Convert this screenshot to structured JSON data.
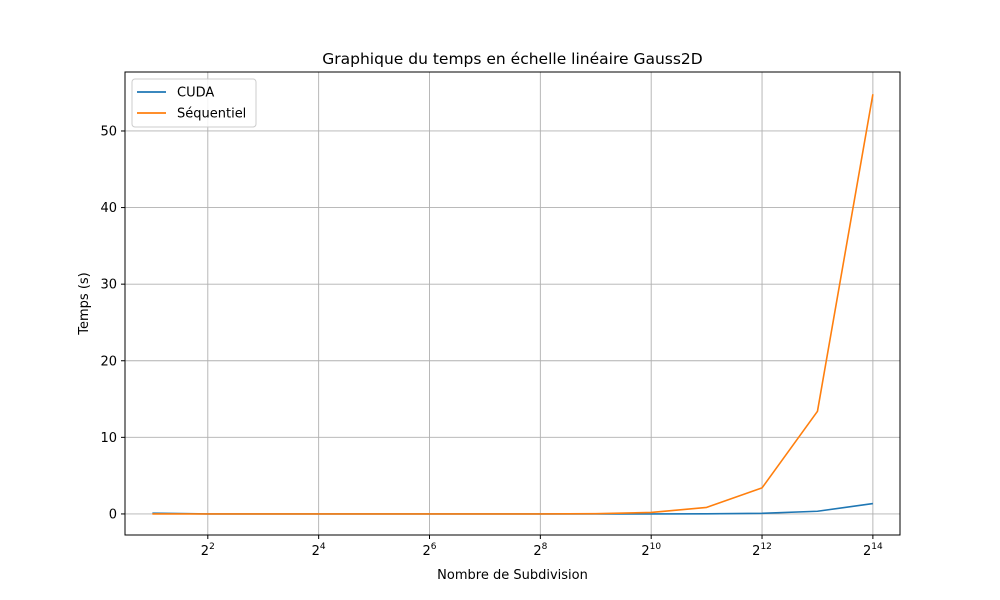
{
  "chart_data": {
    "type": "line",
    "title": "Graphique du temps en échelle linéaire Gauss2D",
    "xlabel": "Nombre de Subdivision",
    "ylabel": "Temps (s)",
    "x_scale": "log2",
    "x_ticks": [
      {
        "base": "2",
        "exp": "2",
        "value": 4
      },
      {
        "base": "2",
        "exp": "4",
        "value": 16
      },
      {
        "base": "2",
        "exp": "6",
        "value": 64
      },
      {
        "base": "2",
        "exp": "8",
        "value": 256
      },
      {
        "base": "2",
        "exp": "10",
        "value": 1024
      },
      {
        "base": "2",
        "exp": "12",
        "value": 4096
      },
      {
        "base": "2",
        "exp": "14",
        "value": 16384
      }
    ],
    "y_ticks": [
      {
        "label": "0",
        "value": 0
      },
      {
        "label": "10",
        "value": 10
      },
      {
        "label": "20",
        "value": 20
      },
      {
        "label": "30",
        "value": 30
      },
      {
        "label": "40",
        "value": 40
      },
      {
        "label": "50",
        "value": 50
      }
    ],
    "xlim": [
      1.42,
      23000
    ],
    "ylim": [
      -2.75,
      57.7
    ],
    "grid": true,
    "legend_position": "top-left",
    "x": [
      2,
      4,
      8,
      16,
      32,
      64,
      128,
      256,
      512,
      1024,
      2048,
      4096,
      8192,
      16384
    ],
    "series": [
      {
        "name": "CUDA",
        "color": "#1f77b4",
        "values": [
          0.1,
          0.0,
          0.0,
          0.0,
          0.0,
          0.0,
          0.0,
          0.0,
          0.0,
          0.0,
          0.02,
          0.08,
          0.35,
          1.35
        ]
      },
      {
        "name": "Séquentiel",
        "color": "#ff7f0e",
        "values": [
          0.0,
          0.0,
          0.0,
          0.0,
          0.0,
          0.0,
          0.0,
          0.0,
          0.03,
          0.2,
          0.85,
          3.4,
          13.4,
          54.8
        ]
      }
    ]
  }
}
